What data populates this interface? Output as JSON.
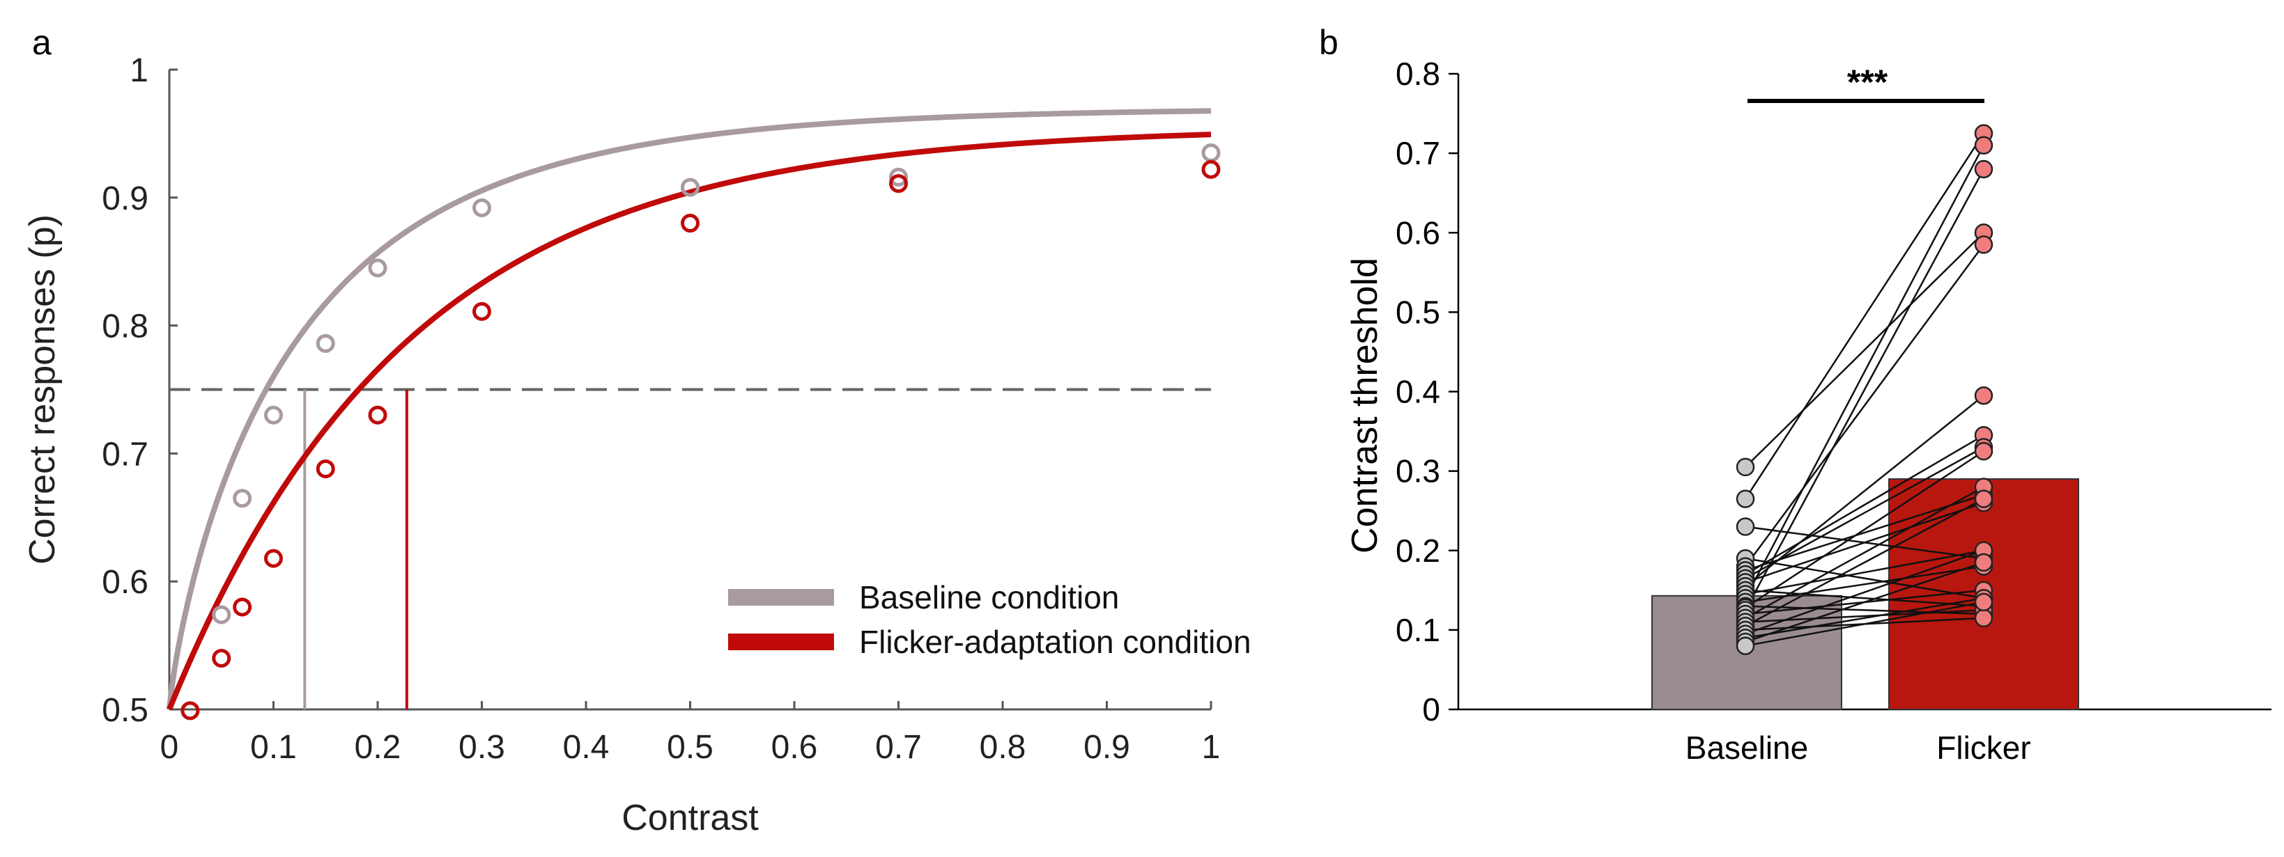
{
  "figure": {
    "panel_a_label": "a",
    "panel_b_label": "b"
  },
  "chart_data": [
    {
      "panel": "a",
      "type": "scatter",
      "title": "",
      "xlabel": "Contrast",
      "ylabel": "Correct responses (p)",
      "xlim": [
        0,
        1
      ],
      "ylim": [
        0.5,
        1
      ],
      "x_ticks": [
        0,
        0.1,
        0.2,
        0.3,
        0.4,
        0.5,
        0.6,
        0.7,
        0.8,
        0.9,
        1
      ],
      "x_tick_labels": [
        "0",
        "0.1",
        "0.2",
        "0.3",
        "0.4",
        "0.5",
        "0.6",
        "0.7",
        "0.8",
        "0.9",
        "1"
      ],
      "y_ticks": [
        0.5,
        0.6,
        0.7,
        0.8,
        0.9,
        1
      ],
      "y_tick_labels": [
        "0.5",
        "0.6",
        "0.7",
        "0.8",
        "0.9",
        "1"
      ],
      "threshold_level": 0.75,
      "legend": {
        "placement": "bottom-right",
        "entries": [
          "Baseline condition",
          "Flicker-adaptation condition"
        ]
      },
      "series": [
        {
          "name": "Baseline condition",
          "color": "#a89aa0",
          "points": [
            {
              "x": 0.05,
              "y": 0.574
            },
            {
              "x": 0.07,
              "y": 0.665
            },
            {
              "x": 0.1,
              "y": 0.73
            },
            {
              "x": 0.15,
              "y": 0.786
            },
            {
              "x": 0.2,
              "y": 0.845
            },
            {
              "x": 0.3,
              "y": 0.892
            },
            {
              "x": 0.5,
              "y": 0.908
            },
            {
              "x": 0.7,
              "y": 0.916
            },
            {
              "x": 1.0,
              "y": 0.935
            }
          ],
          "fit": {
            "threshold": 0.13,
            "beta": 0.82,
            "lapse": 0.03
          },
          "threshold_x": 0.13
        },
        {
          "name": "Flicker-adaptation condition",
          "color": "#c00a0a",
          "points": [
            {
              "x": 0.02,
              "y": 0.499
            },
            {
              "x": 0.05,
              "y": 0.54
            },
            {
              "x": 0.07,
              "y": 0.58
            },
            {
              "x": 0.1,
              "y": 0.618
            },
            {
              "x": 0.15,
              "y": 0.688
            },
            {
              "x": 0.2,
              "y": 0.73
            },
            {
              "x": 0.3,
              "y": 0.811
            },
            {
              "x": 0.5,
              "y": 0.88
            },
            {
              "x": 0.7,
              "y": 0.911
            },
            {
              "x": 1.0,
              "y": 0.922
            }
          ],
          "fit": {
            "threshold": 0.228,
            "beta": 1.0,
            "lapse": 0.045
          },
          "threshold_x": 0.228
        }
      ]
    },
    {
      "panel": "b",
      "type": "bar",
      "title": "",
      "xlabel": "",
      "ylabel": "Contrast threshold",
      "ylim": [
        0,
        0.8
      ],
      "y_ticks": [
        0,
        0.1,
        0.2,
        0.3,
        0.4,
        0.5,
        0.6,
        0.7,
        0.8
      ],
      "y_tick_labels": [
        "0",
        "0.1",
        "0.2",
        "0.3",
        "0.4",
        "0.5",
        "0.6",
        "0.7",
        "0.8"
      ],
      "categories": [
        "Baseline",
        "Flicker"
      ],
      "values": [
        0.143,
        0.29
      ],
      "bar_colors": [
        "#9a8c91",
        "#b8170f"
      ],
      "point_colors": [
        "#c8c8c8",
        "#ef7d7d"
      ],
      "significance": "***",
      "paired_values": [
        [
          0.305,
          0.6
        ],
        [
          0.265,
          0.725
        ],
        [
          0.23,
          0.19
        ],
        [
          0.19,
          0.14
        ],
        [
          0.18,
          0.585
        ],
        [
          0.175,
          0.27
        ],
        [
          0.17,
          0.345
        ],
        [
          0.165,
          0.33
        ],
        [
          0.16,
          0.26
        ],
        [
          0.155,
          0.395
        ],
        [
          0.15,
          0.13
        ],
        [
          0.145,
          0.2
        ],
        [
          0.14,
          0.71
        ],
        [
          0.135,
          0.18
        ],
        [
          0.13,
          0.12
        ],
        [
          0.128,
          0.325
        ],
        [
          0.125,
          0.68
        ],
        [
          0.12,
          0.15
        ],
        [
          0.115,
          0.28
        ],
        [
          0.11,
          0.125
        ],
        [
          0.105,
          0.265
        ],
        [
          0.1,
          0.115
        ],
        [
          0.095,
          0.2
        ],
        [
          0.09,
          0.14
        ],
        [
          0.085,
          0.185
        ],
        [
          0.08,
          0.135
        ]
      ]
    }
  ]
}
